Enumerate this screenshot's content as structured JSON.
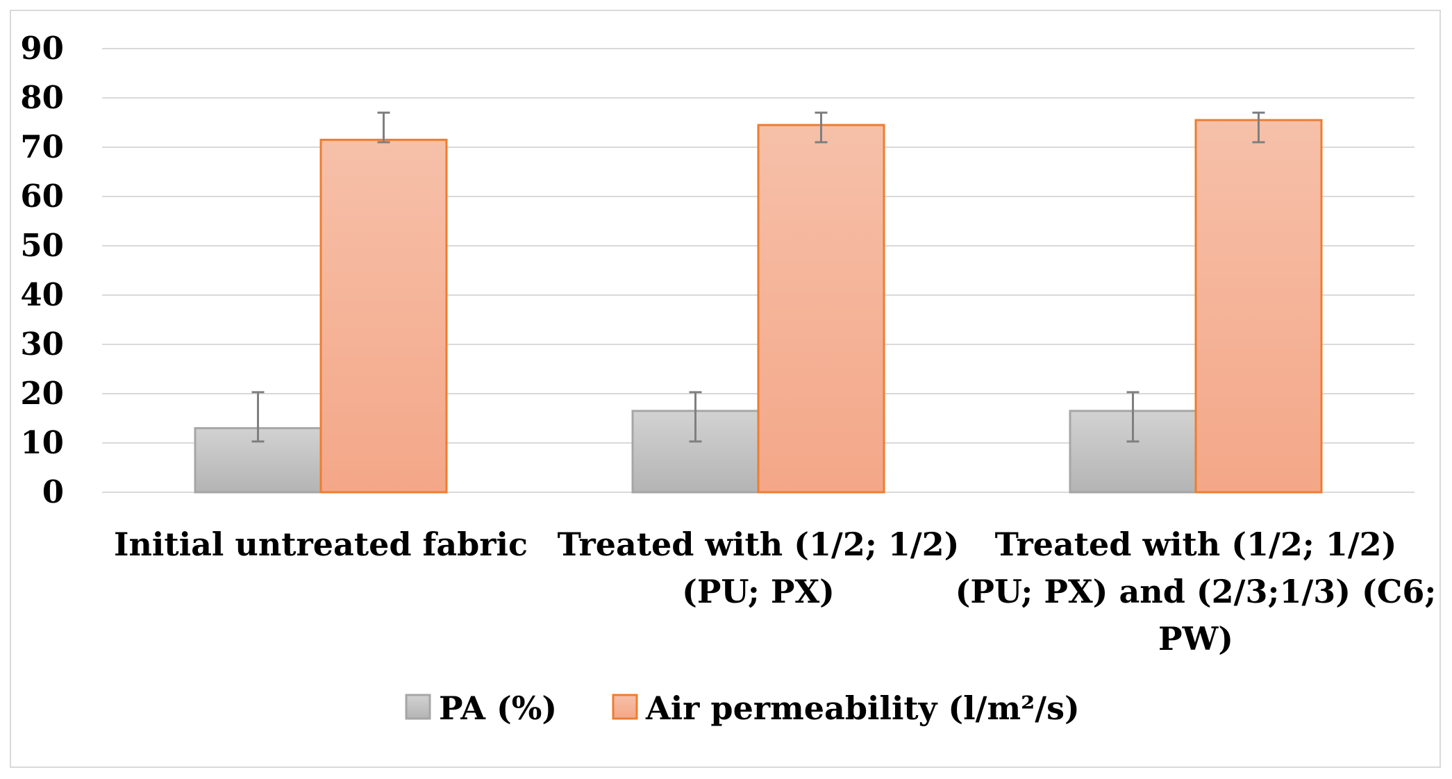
{
  "chart_data": {
    "type": "bar",
    "title": "",
    "xlabel": "",
    "ylabel": "",
    "ylim": [
      0,
      90
    ],
    "ytick_step": 10,
    "yticks": [
      "0",
      "10",
      "20",
      "30",
      "40",
      "50",
      "60",
      "70",
      "80",
      "90"
    ],
    "grid": true,
    "legend_position": "bottom",
    "categories": [
      [
        "Initial untreated fabric"
      ],
      [
        "Treated with (1/2; 1/2)",
        "(PU; PX)"
      ],
      [
        "Treated with (1/2; 1/2)",
        "(PU; PX) and (2/3;1/3) (C6;",
        "PW)"
      ]
    ],
    "series": [
      {
        "name": "PA (%)",
        "values": [
          13,
          16.5,
          16.5
        ],
        "error_low": [
          10.3,
          10.3,
          10.3
        ],
        "error_high": [
          20.3,
          20.3,
          20.3
        ],
        "fill_top": "#d2d2d2",
        "fill_bottom": "#b4b4b4",
        "stroke": "#a6a6a6"
      },
      {
        "name": "Air permeability (l/m²/s)",
        "values": [
          71.5,
          74.5,
          75.5
        ],
        "error_low": [
          71,
          71,
          71
        ],
        "error_high": [
          77,
          77,
          77
        ],
        "fill_top": "#f6c0a9",
        "fill_bottom": "#f4a788",
        "stroke": "#ed7d31"
      }
    ],
    "colors": {
      "grid": "#d9d9d9",
      "axis": "#d9d9d9",
      "error_bar": "#7f7f7f"
    }
  }
}
